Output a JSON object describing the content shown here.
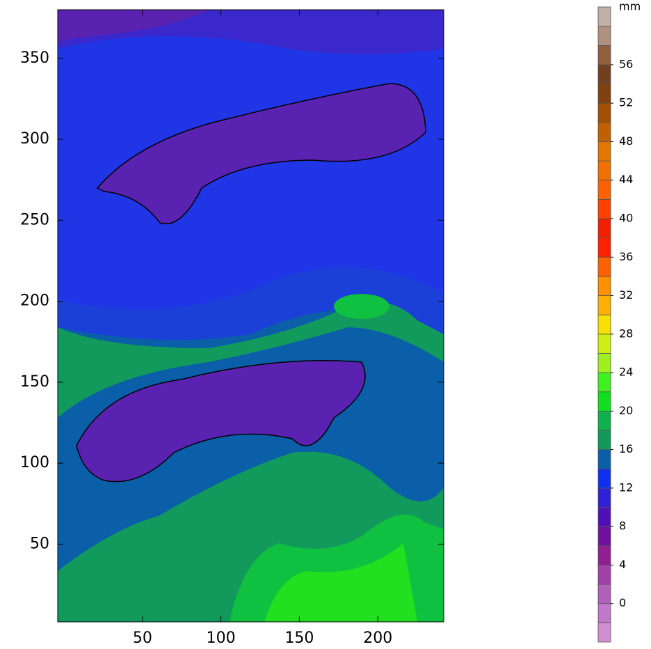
{
  "chart_data": {
    "type": "contour",
    "xlim": [
      -4,
      242
    ],
    "xticks": [
      50,
      100,
      150,
      200
    ],
    "ylim": [
      2,
      380
    ],
    "yticks": [
      50,
      100,
      150,
      200,
      250,
      300,
      350
    ],
    "colorbar": {
      "title": "mm",
      "lim": [
        -4,
        62
      ],
      "ticks": [
        0,
        4,
        8,
        12,
        16,
        20,
        24,
        28,
        32,
        36,
        40,
        44,
        48,
        52,
        56
      ],
      "colors": [
        "#d090d0",
        "#c078c8",
        "#b060b8",
        "#a040a8",
        "#902090",
        "#7010a0",
        "#5010b8",
        "#3020d8",
        "#1030f0",
        "#0a5fa8",
        "#129a5c",
        "#10b050",
        "#10e020",
        "#40f020",
        "#a0f020",
        "#d0f010",
        "#f8e000",
        "#ffb000",
        "#ff9000",
        "#ff6000",
        "#ff2000",
        "#f02000",
        "#ff4000",
        "#ff6000",
        "#f07000",
        "#e07800",
        "#c06000",
        "#a05000",
        "#804010",
        "#704020",
        "#906040",
        "#b09080",
        "#c0b0a8"
      ]
    }
  }
}
